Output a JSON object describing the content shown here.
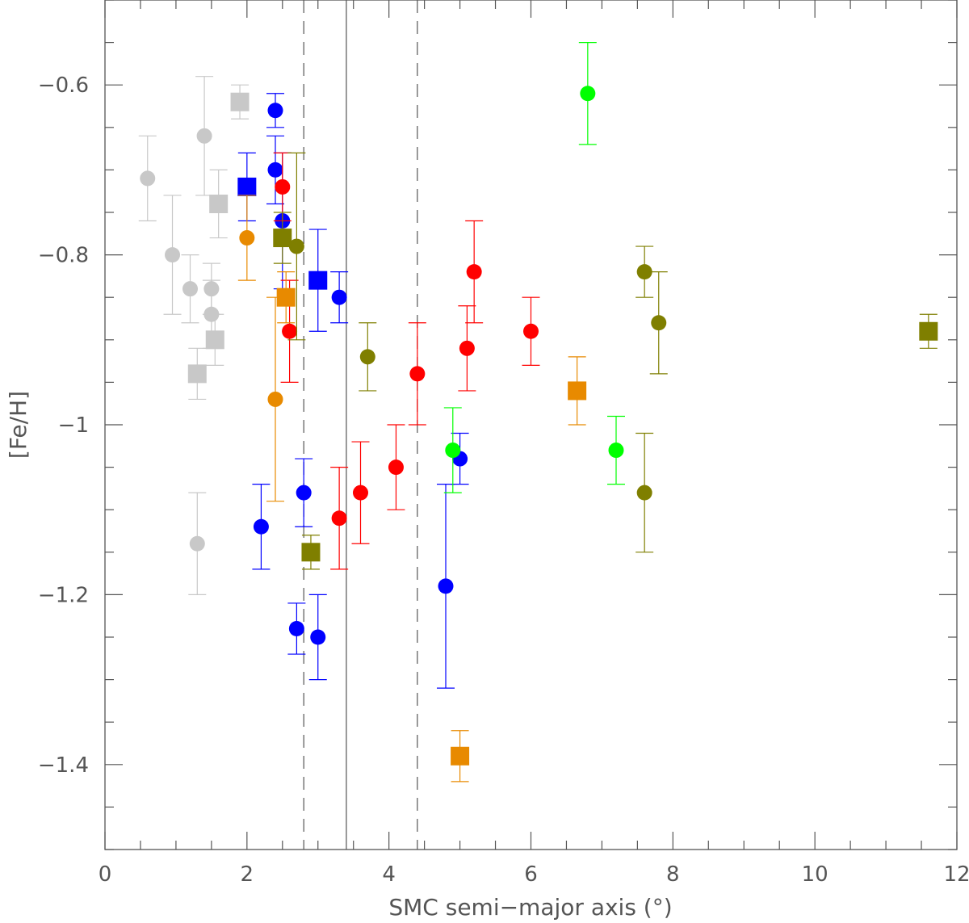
{
  "chart_data": {
    "type": "scatter",
    "title": "",
    "xlabel": "SMC semi−major axis (°)",
    "ylabel": "[Fe/H]",
    "xlim": [
      0,
      12
    ],
    "ylim": [
      -1.5,
      -0.5
    ],
    "x_ticks": [
      0,
      2,
      4,
      6,
      8,
      10,
      12
    ],
    "x_tick_labels": [
      "0",
      "2",
      "4",
      "6",
      "8",
      "10",
      "12"
    ],
    "y_ticks": [
      -1.4,
      -1.2,
      -1.0,
      -0.8,
      -0.6
    ],
    "y_tick_labels": [
      "−1.4",
      "−1.2",
      "−1",
      "−0.8",
      "−0.6"
    ],
    "grid": false,
    "legend": "none",
    "vertical_lines": [
      {
        "x": 2.8,
        "style": "dashed"
      },
      {
        "x": 3.4,
        "style": "solid"
      },
      {
        "x": 4.4,
        "style": "dashed"
      }
    ],
    "series": [
      {
        "color": "#c8c8c8",
        "points": [
          {
            "x": 0.6,
            "y": -0.71,
            "err": 0.05,
            "marker": "circle"
          },
          {
            "x": 0.95,
            "y": -0.8,
            "err": 0.07,
            "marker": "circle"
          },
          {
            "x": 1.2,
            "y": -0.84,
            "err": 0.04,
            "marker": "circle"
          },
          {
            "x": 1.3,
            "y": -1.14,
            "err": 0.06,
            "marker": "circle"
          },
          {
            "x": 1.4,
            "y": -0.66,
            "err": 0.07,
            "marker": "circle"
          },
          {
            "x": 1.5,
            "y": -0.84,
            "err": 0.03,
            "marker": "circle"
          },
          {
            "x": 1.5,
            "y": -0.87,
            "err": 0.04,
            "marker": "circle"
          },
          {
            "x": 1.3,
            "y": -0.94,
            "err": 0.03,
            "marker": "square"
          },
          {
            "x": 1.55,
            "y": -0.9,
            "err": 0.03,
            "marker": "square"
          },
          {
            "x": 1.6,
            "y": -0.74,
            "err": 0.04,
            "marker": "square"
          },
          {
            "x": 1.9,
            "y": -0.62,
            "err": 0.02,
            "marker": "square"
          }
        ]
      },
      {
        "color": "#0000ff",
        "points": [
          {
            "x": 2.2,
            "y": -1.12,
            "err": 0.05,
            "marker": "circle"
          },
          {
            "x": 2.4,
            "y": -0.63,
            "err": 0.02,
            "marker": "circle"
          },
          {
            "x": 2.4,
            "y": -0.7,
            "err": 0.04,
            "marker": "circle"
          },
          {
            "x": 2.5,
            "y": -0.76,
            "err": 0.08,
            "marker": "circle"
          },
          {
            "x": 2.7,
            "y": -1.24,
            "err": 0.03,
            "marker": "circle"
          },
          {
            "x": 2.8,
            "y": -1.08,
            "err": 0.04,
            "marker": "circle"
          },
          {
            "x": 3.0,
            "y": -1.25,
            "err": 0.05,
            "marker": "circle"
          },
          {
            "x": 3.3,
            "y": -0.85,
            "err": 0.03,
            "marker": "circle"
          },
          {
            "x": 4.8,
            "y": -1.19,
            "err": 0.12,
            "marker": "circle"
          },
          {
            "x": 5.0,
            "y": -1.04,
            "err": 0.03,
            "marker": "circle"
          },
          {
            "x": 2.0,
            "y": -0.72,
            "err": 0.04,
            "marker": "square"
          },
          {
            "x": 3.0,
            "y": -0.83,
            "err": 0.06,
            "marker": "square"
          }
        ]
      },
      {
        "color": "#ff0000",
        "points": [
          {
            "x": 2.5,
            "y": -0.72,
            "err": 0.04,
            "marker": "circle"
          },
          {
            "x": 2.6,
            "y": -0.89,
            "err": 0.06,
            "marker": "circle"
          },
          {
            "x": 3.3,
            "y": -1.11,
            "err": 0.06,
            "marker": "circle"
          },
          {
            "x": 3.6,
            "y": -1.08,
            "err": 0.06,
            "marker": "circle"
          },
          {
            "x": 4.1,
            "y": -1.05,
            "err": 0.05,
            "marker": "circle"
          },
          {
            "x": 4.4,
            "y": -0.94,
            "err": 0.06,
            "marker": "circle"
          },
          {
            "x": 5.1,
            "y": -0.91,
            "err": 0.05,
            "marker": "circle"
          },
          {
            "x": 5.2,
            "y": -0.82,
            "err": 0.06,
            "marker": "circle"
          },
          {
            "x": 6.0,
            "y": -0.89,
            "err": 0.04,
            "marker": "circle"
          }
        ]
      },
      {
        "color": "#e88a00",
        "points": [
          {
            "x": 2.0,
            "y": -0.78,
            "err": 0.05,
            "marker": "circle"
          },
          {
            "x": 2.4,
            "y": -0.97,
            "err": 0.12,
            "marker": "circle"
          },
          {
            "x": 2.55,
            "y": -0.85,
            "err": 0.03,
            "marker": "square"
          },
          {
            "x": 5.0,
            "y": -1.39,
            "err": 0.03,
            "marker": "square"
          },
          {
            "x": 6.65,
            "y": -0.96,
            "err": 0.04,
            "marker": "square"
          }
        ]
      },
      {
        "color": "#7f7f00",
        "points": [
          {
            "x": 2.7,
            "y": -0.79,
            "err": 0.11,
            "marker": "circle"
          },
          {
            "x": 3.7,
            "y": -0.92,
            "err": 0.04,
            "marker": "circle"
          },
          {
            "x": 7.6,
            "y": -0.82,
            "err": 0.03,
            "marker": "circle"
          },
          {
            "x": 7.6,
            "y": -1.08,
            "err": 0.07,
            "marker": "circle"
          },
          {
            "x": 7.8,
            "y": -0.88,
            "err": 0.06,
            "marker": "circle"
          },
          {
            "x": 2.5,
            "y": -0.78,
            "err": 0.03,
            "marker": "square"
          },
          {
            "x": 2.9,
            "y": -1.15,
            "err": 0.02,
            "marker": "square"
          },
          {
            "x": 11.6,
            "y": -0.89,
            "err": 0.02,
            "marker": "square"
          }
        ]
      },
      {
        "color": "#00ff00",
        "points": [
          {
            "x": 4.9,
            "y": -1.03,
            "err": 0.05,
            "marker": "circle"
          },
          {
            "x": 6.8,
            "y": -0.61,
            "err": 0.06,
            "marker": "circle"
          },
          {
            "x": 7.2,
            "y": -1.03,
            "err": 0.04,
            "marker": "circle"
          }
        ]
      }
    ]
  }
}
